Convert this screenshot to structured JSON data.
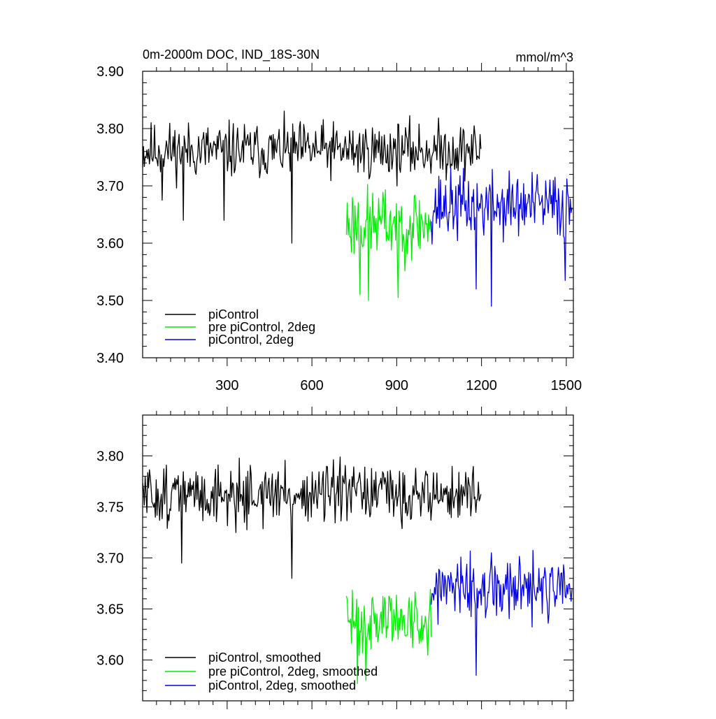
{
  "chart_data": [
    {
      "type": "line",
      "title": "0m-2000m DOC, IND_18S-30N",
      "units_label": "mmol/m^3",
      "xlim": [
        1,
        1525
      ],
      "ylim": [
        3.4,
        3.9
      ],
      "x_ticks": [
        300,
        600,
        900,
        1200,
        1500
      ],
      "x_tick_labels": [
        "300",
        "600",
        "900",
        "1200",
        "1500"
      ],
      "y_ticks": [
        3.4,
        3.5,
        3.6,
        3.7,
        3.8,
        3.9
      ],
      "y_tick_labels": [
        "3.40",
        "3.50",
        "3.60",
        "3.70",
        "3.80",
        "3.90"
      ],
      "legend_position": "bottom-left",
      "series": [
        {
          "name": "piControl",
          "legend": "piControl",
          "color": "#000000",
          "x_start": 1,
          "x_end": 1200,
          "step": 3,
          "mean": 3.762,
          "amplitude": 0.045,
          "seed": 11,
          "dips": [
            [
              70,
              3.675
            ],
            [
              145,
              3.64
            ],
            [
              290,
              3.64
            ],
            [
              530,
              3.6
            ]
          ]
        },
        {
          "name": "pre piControl, 2deg",
          "legend": "pre piControl, 2deg",
          "color": "#00ee00",
          "x_start": 722,
          "x_end": 1022,
          "step": 3,
          "mean": 3.635,
          "amplitude": 0.06,
          "seed": 23,
          "dips": [
            [
              770,
              3.51
            ],
            [
              800,
              3.5
            ],
            [
              905,
              3.505
            ]
          ]
        },
        {
          "name": "piControl, 2deg",
          "legend": "piControl, 2deg",
          "color": "#0000ee",
          "x_start": 1022,
          "x_end": 1522,
          "step": 3,
          "mean": 3.665,
          "amplitude": 0.055,
          "seed": 37,
          "dips": [
            [
              1180,
              3.52
            ],
            [
              1235,
              3.49
            ],
            [
              1495,
              3.535
            ]
          ]
        }
      ]
    },
    {
      "type": "line",
      "xlim": [
        1,
        1525
      ],
      "ylim": [
        3.56,
        3.84
      ],
      "x_ticks": [
        300,
        600,
        900,
        1200,
        1500
      ],
      "y_ticks": [
        3.6,
        3.65,
        3.7,
        3.75,
        3.8
      ],
      "y_tick_labels": [
        "3.60",
        "3.65",
        "3.70",
        "3.75",
        "3.80"
      ],
      "legend_position": "bottom-left",
      "series": [
        {
          "name": "piControl, smoothed",
          "legend": "piControl, smoothed",
          "color": "#000000",
          "x_start": 1,
          "x_end": 1200,
          "step": 3,
          "mean": 3.762,
          "amplitude": 0.027,
          "seed": 51,
          "dips": [
            [
              140,
              3.695
            ],
            [
              530,
              3.68
            ]
          ]
        },
        {
          "name": "pre piControl, 2deg, smoothed",
          "legend": "pre piControl, 2deg, smoothed",
          "color": "#00ee00",
          "x_start": 722,
          "x_end": 1022,
          "step": 3,
          "mean": 3.64,
          "amplitude": 0.03,
          "seed": 63,
          "dips": [
            [
              760,
              3.577
            ],
            [
              790,
              3.58
            ]
          ]
        },
        {
          "name": "piControl, 2deg, smoothed",
          "legend": "piControl, 2deg, smoothed",
          "color": "#0000ee",
          "x_start": 1022,
          "x_end": 1522,
          "step": 3,
          "mean": 3.668,
          "amplitude": 0.03,
          "seed": 77,
          "dips": [
            [
              1180,
              3.585
            ]
          ]
        }
      ]
    }
  ]
}
